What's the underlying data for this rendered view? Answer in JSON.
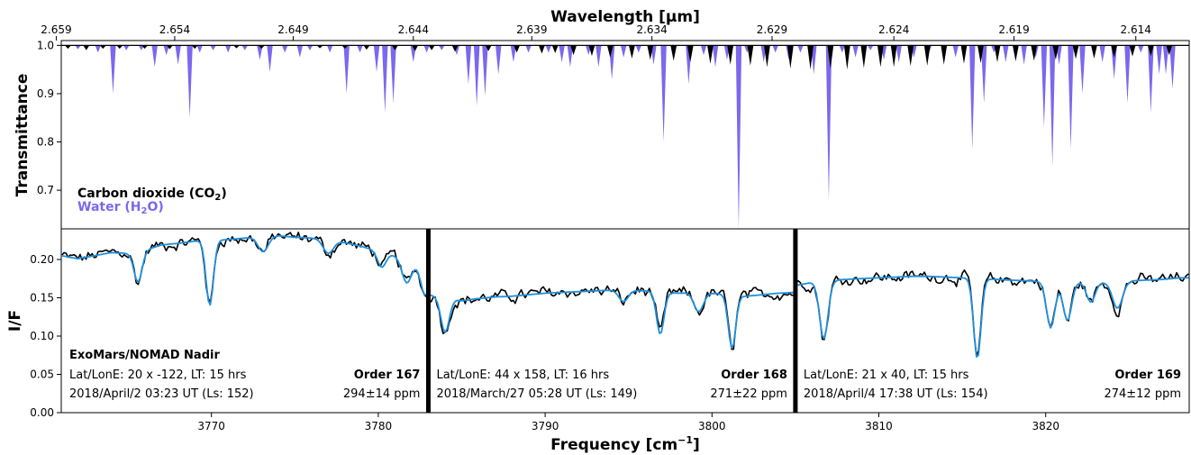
{
  "chart_data": [
    {
      "type": "area",
      "panel": "top",
      "top_axis": {
        "label": "Wavelength [μm]",
        "ticks": [
          "2.659",
          "2.654",
          "2.649",
          "2.644",
          "2.639",
          "2.634",
          "2.629",
          "2.624",
          "2.619",
          "2.614"
        ],
        "tick_freq": [
          3760.7,
          3767.8,
          3774.9,
          3782.1,
          3789.2,
          3796.4,
          3803.6,
          3810.9,
          3818.1,
          3825.4
        ]
      },
      "ylabel": "Transmittance",
      "yticks": [
        "1.0",
        "0.9",
        "0.8",
        "0.7"
      ],
      "ylim": [
        0.62,
        1.01
      ],
      "xlim": [
        3761.0,
        3828.6
      ],
      "legend": [
        {
          "label": "Carbon dioxide (CO",
          "sub": "2",
          "tail": ")",
          "color": "#000000"
        },
        {
          "label": "Water (H",
          "sub": "2",
          "tail": "O)",
          "color": "#7b68ee"
        }
      ],
      "series": [
        {
          "name": "Water (H2O)",
          "color": "#7b68ee",
          "lines": [
            [
              3762.0,
              0.992
            ],
            [
              3763.2,
              0.985
            ],
            [
              3764.1,
              0.9
            ],
            [
              3764.9,
              0.99
            ],
            [
              3765.8,
              0.99
            ],
            [
              3766.6,
              0.955
            ],
            [
              3767.3,
              0.98
            ],
            [
              3768.0,
              0.96
            ],
            [
              3768.7,
              0.85
            ],
            [
              3769.3,
              0.985
            ],
            [
              3770.1,
              0.99
            ],
            [
              3771.0,
              0.985
            ],
            [
              3772.0,
              0.99
            ],
            [
              3772.9,
              0.97
            ],
            [
              3773.5,
              0.945
            ],
            [
              3774.4,
              0.985
            ],
            [
              3775.3,
              0.975
            ],
            [
              3775.9,
              0.99
            ],
            [
              3777.1,
              0.985
            ],
            [
              3778.1,
              0.9
            ],
            [
              3778.9,
              0.985
            ],
            [
              3779.9,
              0.945
            ],
            [
              3780.4,
              0.86
            ],
            [
              3780.9,
              0.88
            ],
            [
              3782.1,
              0.965
            ],
            [
              3782.9,
              0.985
            ],
            [
              3783.8,
              0.99
            ],
            [
              3784.7,
              0.98
            ],
            [
              3785.4,
              0.92
            ],
            [
              3785.9,
              0.875
            ],
            [
              3786.4,
              0.895
            ],
            [
              3787.2,
              0.94
            ],
            [
              3788.1,
              0.965
            ],
            [
              3789.0,
              0.985
            ],
            [
              3790.2,
              0.985
            ],
            [
              3791.0,
              0.965
            ],
            [
              3791.5,
              0.955
            ],
            [
              3792.6,
              0.98
            ],
            [
              3793.2,
              0.955
            ],
            [
              3794.0,
              0.93
            ],
            [
              3794.7,
              0.975
            ],
            [
              3795.6,
              0.985
            ],
            [
              3796.5,
              0.96
            ],
            [
              3797.1,
              0.8
            ],
            [
              3797.7,
              0.985
            ],
            [
              3798.6,
              0.92
            ],
            [
              3799.5,
              0.98
            ],
            [
              3800.2,
              0.955
            ],
            [
              3800.9,
              0.97
            ],
            [
              3801.6,
              0.62
            ],
            [
              3802.1,
              0.985
            ],
            [
              3803.1,
              0.965
            ],
            [
              3803.8,
              0.985
            ],
            [
              3804.6,
              0.97
            ],
            [
              3805.3,
              0.985
            ],
            [
              3806.1,
              0.94
            ],
            [
              3807.0,
              0.68
            ],
            [
              3807.8,
              0.985
            ],
            [
              3808.6,
              0.975
            ],
            [
              3809.5,
              0.99
            ],
            [
              3810.3,
              0.97
            ],
            [
              3811.2,
              0.965
            ],
            [
              3812.1,
              0.975
            ],
            [
              3813.0,
              0.985
            ],
            [
              3814.6,
              0.975
            ],
            [
              3815.6,
              0.785
            ],
            [
              3816.3,
              0.88
            ],
            [
              3816.9,
              0.985
            ],
            [
              3817.6,
              0.965
            ],
            [
              3818.7,
              0.96
            ],
            [
              3819.4,
              0.975
            ],
            [
              3819.9,
              0.83
            ],
            [
              3820.4,
              0.75
            ],
            [
              3820.8,
              0.96
            ],
            [
              3821.5,
              0.785
            ],
            [
              3822.2,
              0.9
            ],
            [
              3823.4,
              0.965
            ],
            [
              3824.1,
              0.93
            ],
            [
              3824.9,
              0.88
            ],
            [
              3825.7,
              0.985
            ],
            [
              3826.3,
              0.86
            ],
            [
              3826.8,
              0.94
            ],
            [
              3827.2,
              0.94
            ],
            [
              3827.6,
              0.91
            ]
          ]
        },
        {
          "name": "Carbon dioxide (CO2)",
          "color": "#000000",
          "lines": [
            [
              3761.4,
              0.993
            ],
            [
              3762.5,
              0.99
            ],
            [
              3763.5,
              0.993
            ],
            [
              3764.5,
              0.993
            ],
            [
              3766.0,
              0.993
            ],
            [
              3767.5,
              0.992
            ],
            [
              3769.0,
              0.993
            ],
            [
              3771.5,
              0.994
            ],
            [
              3773.0,
              0.993
            ],
            [
              3776.5,
              0.994
            ],
            [
              3778.0,
              0.993
            ],
            [
              3779.3,
              0.991
            ],
            [
              3781.0,
              0.99
            ],
            [
              3782.2,
              0.988
            ],
            [
              3783.2,
              0.99
            ],
            [
              3784.6,
              0.987
            ],
            [
              3786.6,
              0.988
            ],
            [
              3788.3,
              0.985
            ],
            [
              3789.8,
              0.983
            ],
            [
              3790.6,
              0.984
            ],
            [
              3791.7,
              0.98
            ],
            [
              3792.8,
              0.978
            ],
            [
              3793.9,
              0.975
            ],
            [
              3795.2,
              0.973
            ],
            [
              3796.3,
              0.97
            ],
            [
              3797.7,
              0.968
            ],
            [
              3798.7,
              0.965
            ],
            [
              3799.9,
              0.962
            ],
            [
              3801.1,
              0.96
            ],
            [
              3802.3,
              0.958
            ],
            [
              3803.3,
              0.955
            ],
            [
              3804.7,
              0.952
            ],
            [
              3805.9,
              0.95
            ],
            [
              3807.1,
              0.952
            ],
            [
              3808.1,
              0.95
            ],
            [
              3809.1,
              0.953
            ],
            [
              3810.1,
              0.955
            ],
            [
              3810.9,
              0.955
            ],
            [
              3811.9,
              0.957
            ],
            [
              3812.9,
              0.958
            ],
            [
              3813.9,
              0.96
            ],
            [
              3815.1,
              0.962
            ],
            [
              3816.1,
              0.963
            ],
            [
              3817.1,
              0.965
            ],
            [
              3818.2,
              0.967
            ],
            [
              3819.3,
              0.968
            ],
            [
              3820.6,
              0.97
            ],
            [
              3821.8,
              0.972
            ],
            [
              3822.9,
              0.973
            ],
            [
              3824.1,
              0.975
            ],
            [
              3825.2,
              0.977
            ],
            [
              3826.3,
              0.978
            ],
            [
              3827.4,
              0.98
            ]
          ]
        }
      ]
    },
    {
      "type": "line",
      "panel": "bottom",
      "xlabel": "Frequency [cm",
      "xlabel_sup": "−1",
      "xlabel_tail": "]",
      "ylabel": "I/F",
      "xlim": [
        3761.0,
        3828.6
      ],
      "ylim": [
        0.0,
        0.24
      ],
      "xticks": [
        3770,
        3780,
        3790,
        3800,
        3810,
        3820
      ],
      "yticks": [
        "0.00",
        "0.05",
        "0.10",
        "0.15",
        "0.20"
      ],
      "instrument_label": "ExoMars/NOMAD Nadir",
      "order_boundaries": [
        3783.0,
        3805.0
      ],
      "orders": [
        {
          "order": "Order 167",
          "latlon": "Lat/LonE: 20 x -122, LT: 15 hrs",
          "date": "2018/April/2 03:23 UT (Ls: 152)",
          "abundance": "294±14 ppm",
          "xrange": [
            3761.0,
            3783.0
          ],
          "anchors": [
            [
              3761,
              0.205
            ],
            [
              3762,
              0.201
            ],
            [
              3763,
              0.205
            ],
            [
              3764,
              0.209
            ],
            [
              3765,
              0.208
            ],
            [
              3766,
              0.212
            ],
            [
              3767,
              0.219
            ],
            [
              3768,
              0.221
            ],
            [
              3769,
              0.224
            ],
            [
              3770,
              0.225
            ],
            [
              3771,
              0.226
            ],
            [
              3772,
              0.228
            ],
            [
              3773,
              0.23
            ],
            [
              3774,
              0.231
            ],
            [
              3775,
              0.229
            ],
            [
              3776,
              0.228
            ],
            [
              3777,
              0.226
            ],
            [
              3778,
              0.222
            ],
            [
              3779,
              0.217
            ],
            [
              3780,
              0.211
            ],
            [
              3781,
              0.205
            ],
            [
              3782,
              0.197
            ],
            [
              3783,
              0.186
            ]
          ],
          "dips": [
            [
              3765.6,
              0.04,
              0.24
            ],
            [
              3769.9,
              0.085,
              0.22
            ],
            [
              3773.1,
              0.02,
              0.3
            ],
            [
              3777.0,
              0.018,
              0.3
            ],
            [
              3780.2,
              0.02,
              0.25
            ],
            [
              3781.7,
              0.03,
              0.28
            ],
            [
              3782.8,
              0.035,
              0.25
            ]
          ]
        },
        {
          "order": "Order 168",
          "latlon": "Lat/LonE: 44 x 158, LT: 16 hrs",
          "date": "2018/March/27 05:28 UT (Ls: 149)",
          "abundance": "271±22 ppm",
          "xrange": [
            3783.0,
            3805.0
          ],
          "anchors": [
            [
              3783,
              0.154
            ],
            [
              3784,
              0.15
            ],
            [
              3785,
              0.146
            ],
            [
              3786,
              0.149
            ],
            [
              3787,
              0.151
            ],
            [
              3788,
              0.152
            ],
            [
              3789,
              0.154
            ],
            [
              3790,
              0.156
            ],
            [
              3791,
              0.157
            ],
            [
              3792,
              0.158
            ],
            [
              3793,
              0.159
            ],
            [
              3794,
              0.16
            ],
            [
              3795,
              0.16
            ],
            [
              3796,
              0.159
            ],
            [
              3797,
              0.157
            ],
            [
              3798,
              0.156
            ],
            [
              3799,
              0.157
            ],
            [
              3800,
              0.156
            ],
            [
              3801,
              0.154
            ],
            [
              3802,
              0.152
            ],
            [
              3803,
              0.154
            ],
            [
              3804,
              0.156
            ],
            [
              3805,
              0.157
            ]
          ],
          "dips": [
            [
              3784.0,
              0.045,
              0.25
            ],
            [
              3796.9,
              0.055,
              0.22
            ],
            [
              3801.2,
              0.07,
              0.22
            ],
            [
              3799.2,
              0.025,
              0.28
            ],
            [
              3794.7,
              0.015,
              0.28
            ]
          ]
        },
        {
          "order": "Order 169",
          "latlon": "Lat/LonE: 21 x 40, LT: 15 hrs",
          "date": "2018/April/4 17:38 UT (Ls: 154)",
          "abundance": "274±12 ppm",
          "xrange": [
            3805.0,
            3828.6
          ],
          "anchors": [
            [
              3805,
              0.166
            ],
            [
              3806,
              0.17
            ],
            [
              3807,
              0.172
            ],
            [
              3808,
              0.174
            ],
            [
              3809,
              0.175
            ],
            [
              3810,
              0.176
            ],
            [
              3811,
              0.177
            ],
            [
              3812,
              0.178
            ],
            [
              3813,
              0.178
            ],
            [
              3814,
              0.177
            ],
            [
              3815,
              0.176
            ],
            [
              3816,
              0.175
            ],
            [
              3817,
              0.174
            ],
            [
              3818,
              0.173
            ],
            [
              3819,
              0.172
            ],
            [
              3820,
              0.171
            ],
            [
              3821,
              0.17
            ],
            [
              3822,
              0.17
            ],
            [
              3823,
              0.169
            ],
            [
              3824,
              0.171
            ],
            [
              3825,
              0.172
            ],
            [
              3826,
              0.173
            ],
            [
              3827,
              0.174
            ],
            [
              3828,
              0.176
            ],
            [
              3828.6,
              0.176
            ]
          ],
          "dips": [
            [
              3806.7,
              0.075,
              0.25
            ],
            [
              3815.9,
              0.105,
              0.22
            ],
            [
              3820.3,
              0.06,
              0.25
            ],
            [
              3821.3,
              0.05,
              0.25
            ],
            [
              3824.3,
              0.035,
              0.3
            ],
            [
              3822.7,
              0.025,
              0.25
            ]
          ]
        }
      ],
      "series": [
        {
          "name": "observed",
          "color": "#000000"
        },
        {
          "name": "model",
          "color": "#1f8fdc"
        }
      ]
    }
  ]
}
